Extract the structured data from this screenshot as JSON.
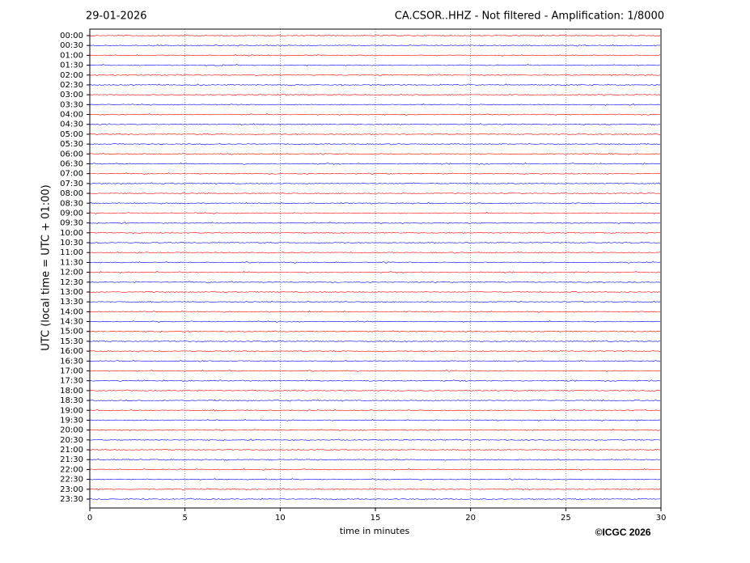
{
  "chart_data": {
    "type": "helicorder",
    "date": "29-01-2026",
    "title": "CA.CSOR..HHZ - Not filtered - Amplification: 1/8000",
    "ylabel": "UTC (local time = UTC + 01:00)",
    "xlabel": "time in minutes",
    "categories": [
      "00:00",
      "00:30",
      "01:00",
      "01:30",
      "02:00",
      "02:30",
      "03:00",
      "03:30",
      "04:00",
      "04:30",
      "05:00",
      "05:30",
      "06:00",
      "06:30",
      "07:00",
      "07:30",
      "08:00",
      "08:30",
      "09:00",
      "09:30",
      "10:00",
      "10:30",
      "11:00",
      "11:30",
      "12:00",
      "12:30",
      "13:00",
      "13:30",
      "14:00",
      "14:30",
      "15:00",
      "15:30",
      "16:00",
      "16:30",
      "17:00",
      "17:30",
      "18:00",
      "18:30",
      "19:00",
      "19:30",
      "20:00",
      "20:30",
      "21:00",
      "21:30",
      "22:00",
      "22:30",
      "23:00",
      "23:30"
    ],
    "trace_colors": [
      "#ff0000",
      "#0000ff"
    ],
    "xlim": [
      0,
      30
    ],
    "xticks": [
      0,
      5,
      10,
      15,
      20,
      25,
      30
    ],
    "grid": true
  },
  "footer": {
    "copyright": "©ICGC 2026"
  }
}
